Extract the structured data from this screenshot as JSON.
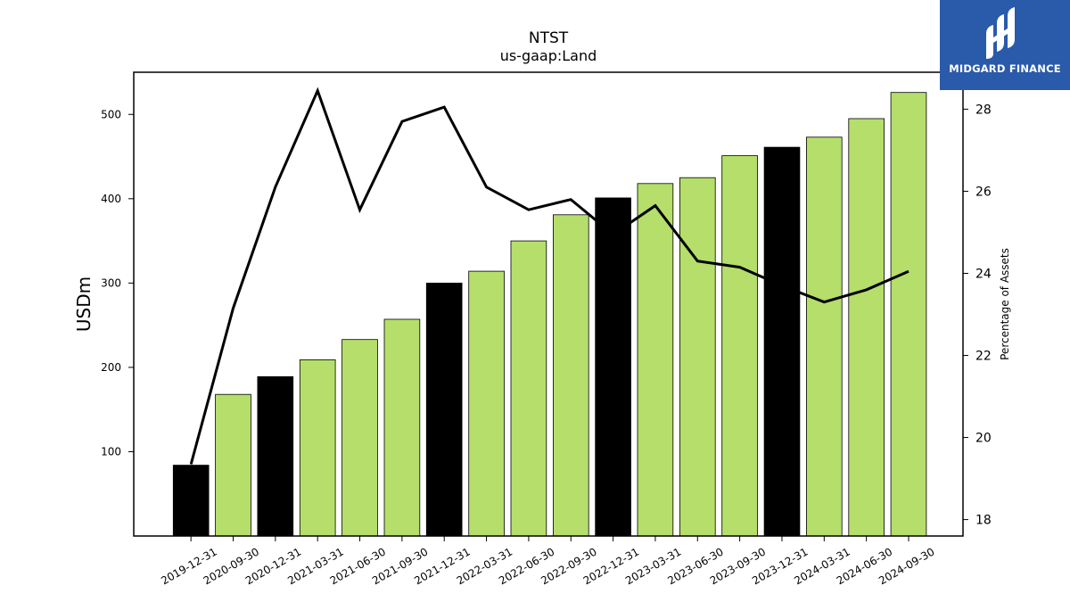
{
  "chart_data": {
    "type": "bar",
    "title": "NTST",
    "subtitle": "us-gaap:Land",
    "ylabel": "USDm",
    "y2label": "Percentage of Assets",
    "categories": [
      "2019-12-31",
      "2020-09-30",
      "2020-12-31",
      "2021-03-31",
      "2021-06-30",
      "2021-09-30",
      "2021-12-31",
      "2022-03-31",
      "2022-06-30",
      "2022-09-30",
      "2022-12-31",
      "2023-03-31",
      "2023-06-30",
      "2023-09-30",
      "2023-12-31",
      "2024-03-31",
      "2024-06-30",
      "2024-09-30"
    ],
    "series": [
      {
        "type": "bar",
        "values": [
          84,
          168,
          189,
          209,
          233,
          257,
          300,
          314,
          350,
          381,
          401,
          418,
          425,
          451,
          461,
          473,
          495,
          526
        ],
        "colors": [
          "#000000",
          "#b5de6b",
          "#000000",
          "#b5de6b",
          "#b5de6b",
          "#b5de6b",
          "#000000",
          "#b5de6b",
          "#b5de6b",
          "#b5de6b",
          "#000000",
          "#b5de6b",
          "#b5de6b",
          "#b5de6b",
          "#000000",
          "#b5de6b",
          "#b5de6b",
          "#b5de6b"
        ]
      },
      {
        "type": "line",
        "axis": "right",
        "values": [
          19.35,
          23.15,
          26.1,
          28.45,
          25.55,
          27.7,
          28.05,
          26.1,
          25.55,
          25.8,
          24.95,
          25.65,
          24.3,
          24.15,
          23.7,
          23.3,
          23.6,
          24.05
        ],
        "color": "#000000"
      }
    ],
    "ylim": [
      0,
      550
    ],
    "y2lim": [
      17.6,
      28.9
    ],
    "yticks": [
      100,
      200,
      300,
      400,
      500
    ],
    "y2ticks": [
      18,
      20,
      22,
      24,
      26,
      28
    ]
  },
  "logo": {
    "text": "MIDGARD FINANCE",
    "color": "#2a5aaa"
  }
}
